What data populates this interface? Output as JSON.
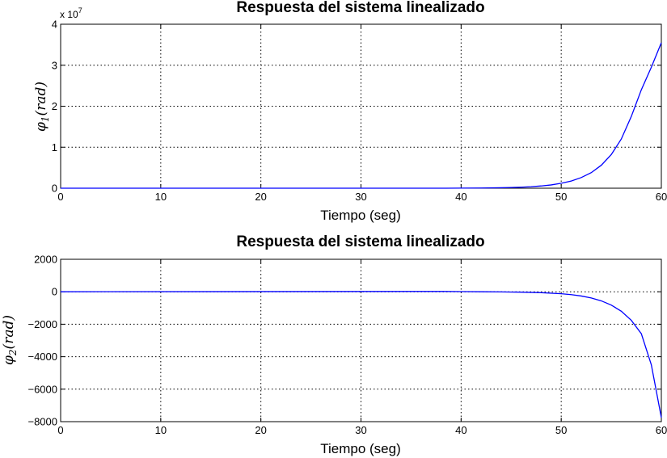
{
  "chart_data": [
    {
      "type": "line",
      "title": "Respuesta del sistema linealizado",
      "xlabel": "Tiempo (seg)",
      "ylabel": {
        "symbol": "φ",
        "subscript": "1",
        "unit": "(rad)"
      },
      "xlim": [
        0,
        60
      ],
      "ylim": [
        0,
        4
      ],
      "y_exponent": {
        "base": "x 10",
        "power": "7"
      },
      "xticks": [
        "0",
        "10",
        "20",
        "30",
        "40",
        "50",
        "60"
      ],
      "yticks": [
        "0",
        "1",
        "2",
        "3",
        "4"
      ],
      "grid": true,
      "color": "#0000ff",
      "series": [
        {
          "x": [
            0,
            38.5,
            40,
            42,
            44,
            45,
            46,
            47,
            48,
            49,
            50,
            51,
            52,
            53,
            54,
            55,
            56,
            57,
            58,
            59,
            60
          ],
          "y": [
            0,
            0,
            0.002,
            0.005,
            0.011,
            0.017,
            0.025,
            0.037,
            0.055,
            0.08,
            0.12,
            0.175,
            0.26,
            0.38,
            0.56,
            0.82,
            1.2,
            1.75,
            2.4,
            2.95,
            3.55
          ]
        }
      ]
    },
    {
      "type": "line",
      "title": "Respuesta del sistema linealizado",
      "xlabel": "Tiempo (seg)",
      "ylabel": {
        "symbol": "φ",
        "subscript": "2",
        "unit": "(rad)"
      },
      "xlim": [
        0,
        60
      ],
      "ylim": [
        -8000,
        2000
      ],
      "xticks": [
        "0",
        "10",
        "20",
        "30",
        "40",
        "50",
        "60"
      ],
      "yticks": [
        "−8000",
        "−6000",
        "−4000",
        "−2000",
        "0",
        "2000"
      ],
      "grid": true,
      "color": "#0000ff",
      "series": [
        {
          "x": [
            0,
            38.2,
            40,
            42,
            44,
            46,
            48,
            50,
            51,
            52,
            53,
            54,
            55,
            56,
            57,
            58,
            59,
            60
          ],
          "y": [
            0,
            20,
            10,
            0,
            -10,
            -25,
            -55,
            -120,
            -175,
            -260,
            -380,
            -560,
            -820,
            -1200,
            -1760,
            -2580,
            -4500,
            -7750
          ]
        }
      ]
    }
  ]
}
